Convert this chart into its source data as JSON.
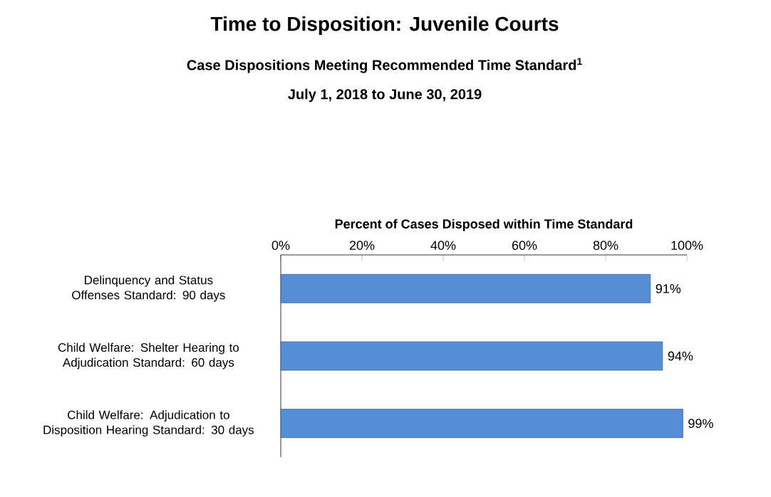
{
  "chart_data": {
    "type": "bar",
    "orientation": "horizontal",
    "title": "Time to Disposition:  Juvenile Courts",
    "subtitle": "Case Dispositions Meeting Recommended Time Standard$^{1}$",
    "annotations": [
      "July 1, 2018 to June 30, 2019"
    ],
    "xlabel": "Percent of Cases Disposed  within Time Standard",
    "categories": [
      "Delinquency and Status Offenses Standard: 90 days",
      "Child Welfare: Shelter Hearing to Adjudication Standard: 60 days",
      "Child Welfare: Adjudication to Disposition Hearing Standard: 30 days"
    ],
    "values": [
      91,
      94,
      99
    ],
    "value_labels": [
      "91%",
      "94%",
      "99%"
    ],
    "color": "#558ed5",
    "xlim": [
      0,
      100
    ],
    "xticks": [
      {
        "value": 0,
        "label": "0%"
      },
      {
        "value": 20,
        "label": "20%"
      },
      {
        "value": 40,
        "label": "40%"
      },
      {
        "value": 60,
        "label": "60%"
      },
      {
        "value": 80,
        "label": "80%"
      },
      {
        "value": 100,
        "label": "100%"
      }
    ],
    "grid": false
  }
}
